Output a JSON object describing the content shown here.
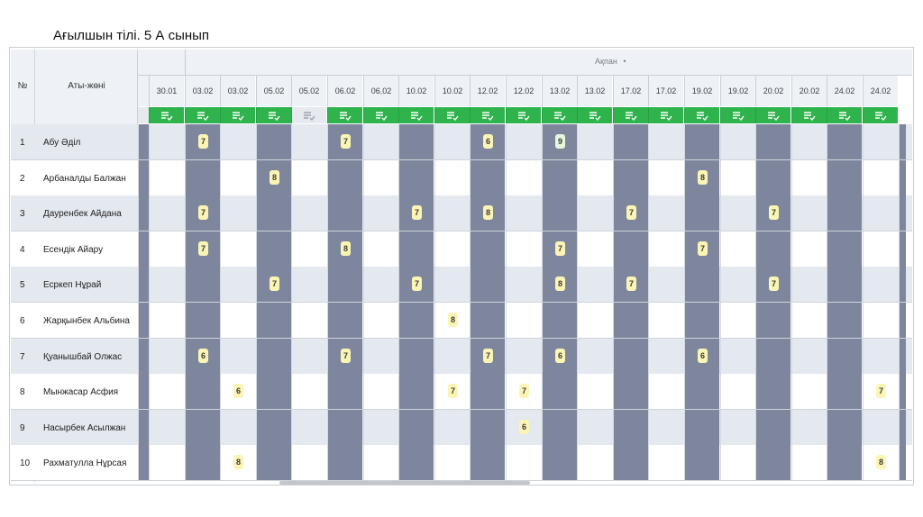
{
  "title": "Ағылшын тілі. 5 А сынып",
  "header": {
    "num": "№",
    "name": "Аты-жөні",
    "month": "Ақпан",
    "month_marker": "•"
  },
  "dates": [
    "30.01",
    "03.02",
    "03.02",
    "05.02",
    "05.02",
    "06.02",
    "06.02",
    "10.02",
    "10.02",
    "12.02",
    "12.02",
    "13.02",
    "13.02",
    "17.02",
    "17.02",
    "19.02",
    "19.02",
    "20.02",
    "20.02",
    "24.02",
    "24.02"
  ],
  "active_columns": [
    true,
    true,
    true,
    true,
    false,
    true,
    true,
    true,
    true,
    true,
    true,
    true,
    true,
    true,
    true,
    true,
    true,
    true,
    true,
    true,
    true
  ],
  "dark_columns": [
    1,
    3,
    5,
    7,
    9,
    11,
    13,
    15,
    17,
    19
  ],
  "icon_name": "checklist-icon",
  "students": [
    {
      "num": "1",
      "name": "Абу Әділ",
      "grades": {
        "1": "7",
        "5": "7",
        "9": "6",
        "11": "9"
      }
    },
    {
      "num": "2",
      "name": "Арбаналды Балжан",
      "grades": {
        "3": "8",
        "15": "8"
      }
    },
    {
      "num": "3",
      "name": "Дауренбек Айдана",
      "grades": {
        "1": "7",
        "7": "7",
        "9": "8",
        "13": "7",
        "17": "7"
      }
    },
    {
      "num": "4",
      "name": "Есендік Айару",
      "grades": {
        "1": "7",
        "5": "8",
        "11": "7",
        "15": "7"
      }
    },
    {
      "num": "5",
      "name": "Есркеп Нұрай",
      "grades": {
        "3": "7",
        "7": "7",
        "11": "8",
        "13": "7",
        "17": "7"
      }
    },
    {
      "num": "6",
      "name": "Жарқынбек Альбина",
      "grades": {
        "8": "8"
      }
    },
    {
      "num": "7",
      "name": "Қуанышбай Олжас",
      "grades": {
        "1": "6",
        "5": "7",
        "9": "7",
        "11": "6",
        "15": "6"
      }
    },
    {
      "num": "8",
      "name": "Мынжасар Асфия",
      "grades": {
        "2": "6",
        "8": "7",
        "10": "7",
        "20": "7"
      }
    },
    {
      "num": "9",
      "name": "Насырбек Асылжан",
      "grades": {
        "10": "6"
      }
    },
    {
      "num": "10",
      "name": "Рахматулла Нұрсая",
      "grades": {
        "2": "8",
        "20": "8"
      }
    }
  ],
  "colors": {
    "dark_cell": "#7e869d",
    "odd_row": "#e4e8ef",
    "even_row": "#ffffff",
    "icon_bar": "#2fb34d",
    "grade_bg": "#fbf5b5"
  }
}
